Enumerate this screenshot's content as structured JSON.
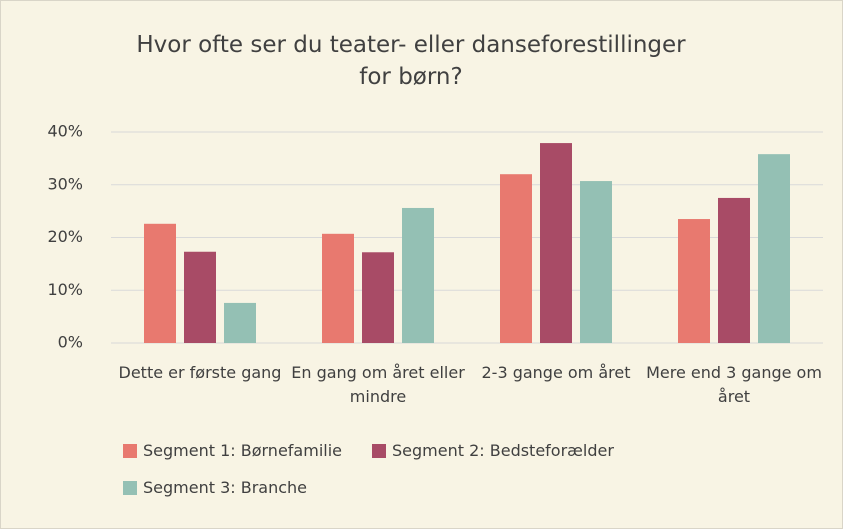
{
  "chart_data": {
    "type": "bar",
    "title": "Hvor ofte ser du teater- eller danseforestillinger for børn?",
    "categories": [
      "Dette er første gang",
      "En gang om året eller mindre",
      "2-3 gange om året",
      "Mere end 3 gange om året"
    ],
    "series": [
      {
        "name": "Segment 1: Børnefamilie",
        "color": "#e8796f",
        "values": [
          22.6,
          20.7,
          32.0,
          23.5
        ]
      },
      {
        "name": "Segment 2: Bedsteforælder",
        "color": "#a84b66",
        "values": [
          17.3,
          17.2,
          37.9,
          27.5
        ]
      },
      {
        "name": "Segment 3: Branche",
        "color": "#94c0b4",
        "values": [
          7.6,
          25.6,
          30.7,
          35.8
        ]
      }
    ],
    "ylim": [
      0,
      40
    ],
    "yticks": [
      {
        "value": 0,
        "label": "0%"
      },
      {
        "value": 10,
        "label": "10%"
      },
      {
        "value": 20,
        "label": "20%"
      },
      {
        "value": 30,
        "label": "30%"
      },
      {
        "value": 40,
        "label": "40%"
      }
    ],
    "grid": true,
    "legend": "bottom"
  }
}
